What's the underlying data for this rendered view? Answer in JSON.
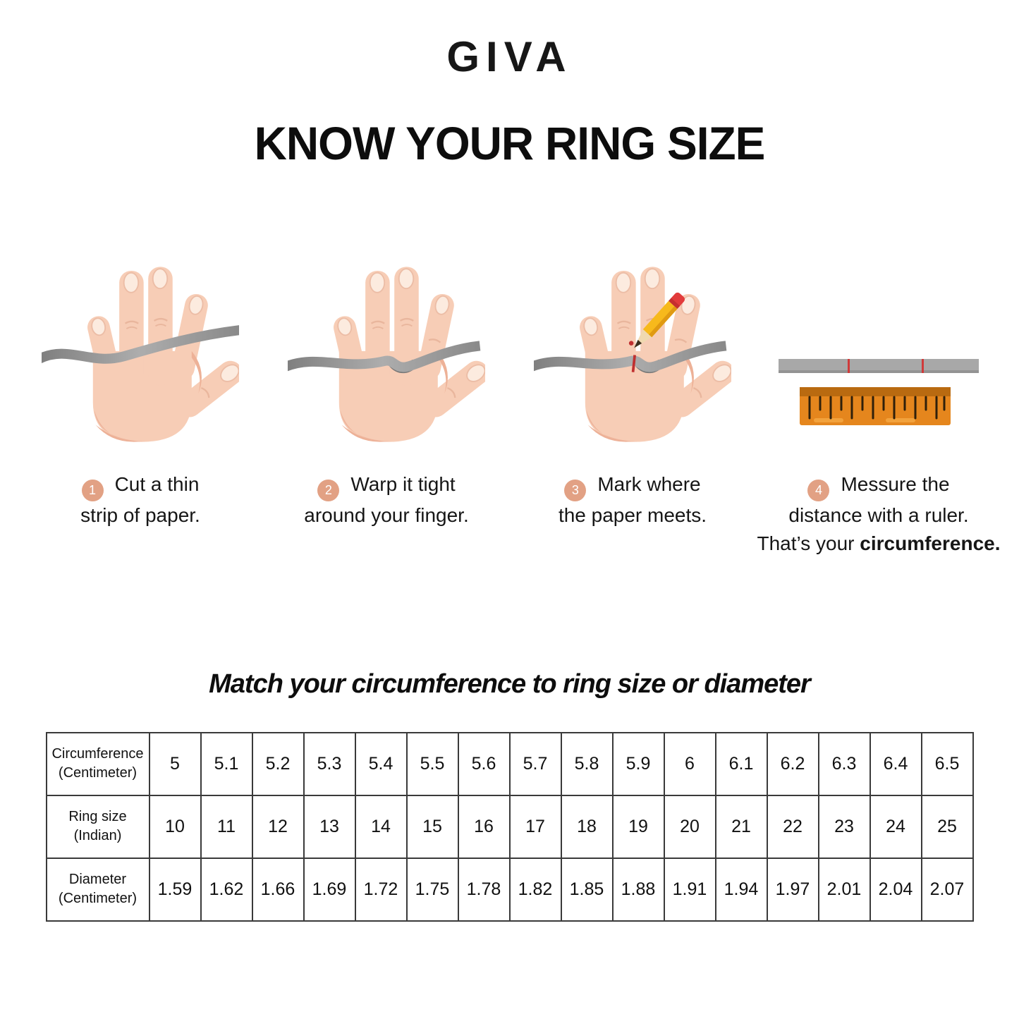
{
  "brand": "GIVA",
  "title": "KNOW YOUR RING SIZE",
  "steps": [
    {
      "num": "1",
      "line1": "Cut a thin",
      "line2": "strip of paper."
    },
    {
      "num": "2",
      "line1": "Warp it tight",
      "line2": "around your finger."
    },
    {
      "num": "3",
      "line1": "Mark where",
      "line2": "the paper meets."
    },
    {
      "num": "4",
      "line1": "Messure the",
      "line2": "distance with a ruler.",
      "line3_prefix": "That’s your ",
      "line3_bold": "circumference."
    }
  ],
  "icons": [
    "hand-paper-strip-icon",
    "hand-wrapped-finger-icon",
    "hand-pencil-mark-icon",
    "ruler-icon"
  ],
  "table_title": "Match your circumference to ring size or diameter",
  "table": {
    "rows": [
      {
        "label": "Circumference\n(Centimeter)",
        "values": [
          "5",
          "5.1",
          "5.2",
          "5.3",
          "5.4",
          "5.5",
          "5.6",
          "5.7",
          "5.8",
          "5.9",
          "6",
          "6.1",
          "6.2",
          "6.3",
          "6.4",
          "6.5"
        ]
      },
      {
        "label": "Ring size\n(Indian)",
        "values": [
          "10",
          "11",
          "12",
          "13",
          "14",
          "15",
          "16",
          "17",
          "18",
          "19",
          "20",
          "21",
          "22",
          "23",
          "24",
          "25"
        ]
      },
      {
        "label": "Diameter\n(Centimeter)",
        "values": [
          "1.59",
          "1.62",
          "1.66",
          "1.69",
          "1.72",
          "1.75",
          "1.78",
          "1.82",
          "1.85",
          "1.88",
          "1.91",
          "1.94",
          "1.97",
          "2.01",
          "2.04",
          "2.07"
        ]
      }
    ]
  },
  "colors": {
    "badge": "#e2a184",
    "hand_skin": "#f7cdb6",
    "hand_shade": "#edb197",
    "strip_gray": "#8f8f8f",
    "mark_red": "#c03030",
    "ruler_orange": "#e5861d",
    "ruler_band": "#b96a10",
    "table_border": "#3a3a3a"
  }
}
